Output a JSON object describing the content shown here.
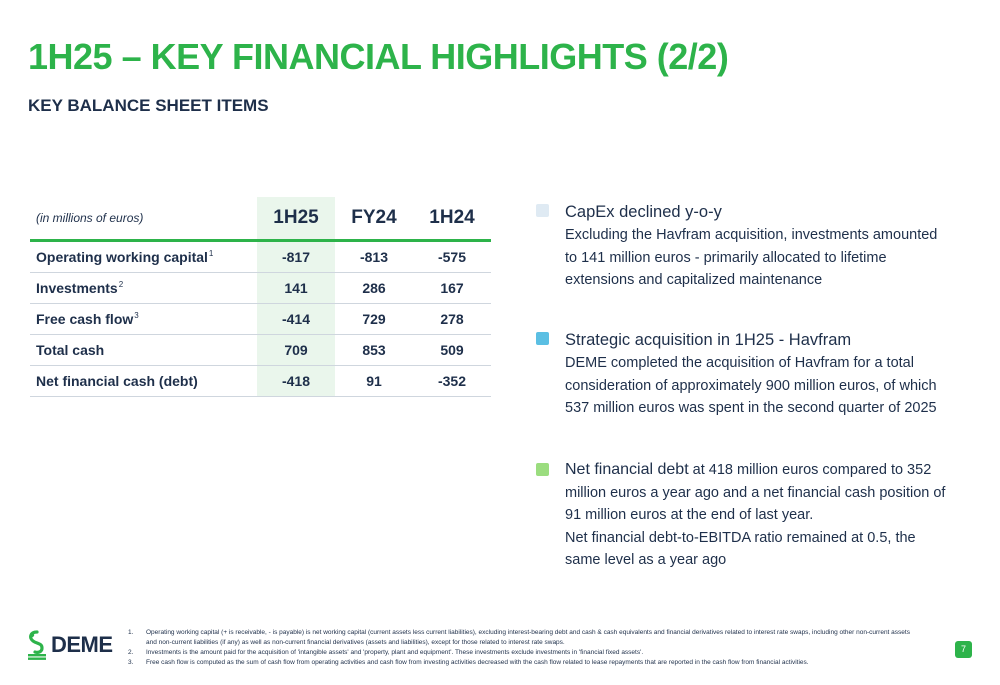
{
  "header": {
    "title": "1H25 – KEY FINANCIAL HIGHLIGHTS (2/2)",
    "subtitle": "KEY BALANCE SHEET ITEMS"
  },
  "table": {
    "unit_label": "(in millions of euros)",
    "columns": [
      "1H25",
      "FY24",
      "1H24"
    ],
    "rows": [
      {
        "label": "Operating working capital",
        "note": "1",
        "values": [
          "-817",
          "-813",
          "-575"
        ]
      },
      {
        "label": "Investments",
        "note": "2",
        "values": [
          "141",
          "286",
          "167"
        ]
      },
      {
        "label": "Free cash flow",
        "note": "3",
        "values": [
          "-414",
          "729",
          "278"
        ]
      },
      {
        "label": "Total cash",
        "note": "",
        "values": [
          "709",
          "853",
          "509"
        ]
      },
      {
        "label": "Net financial cash (debt)",
        "note": "",
        "values": [
          "-418",
          "91",
          "-352"
        ]
      }
    ]
  },
  "highlights": [
    {
      "color": "#dfeaf3",
      "heading": "CapEx declined y-o-y",
      "body": "Excluding the Havfram acquisition, investments amounted to 141 million euros - primarily allocated to lifetime extensions and capitalized maintenance"
    },
    {
      "color": "#5bbfe3",
      "heading": "Strategic acquisition in 1H25 - Havfram",
      "body": "DEME completed the acquisition of Havfram for a total consideration of approximately 900 million euros, of which 537 million euros was spent in the second quarter of 2025"
    },
    {
      "color": "#9bdd7f",
      "lead": "Net financial debt",
      "body1": " at 418 million euros compared to 352 million euros a year ago and a net financial cash position of 91 million euros at the end of last year.",
      "body2": "Net financial debt-to-EBITDA ratio remained at 0.5, the same level as a year ago"
    }
  ],
  "footer": {
    "logo_text": "DEME",
    "page_number": "7",
    "footnotes": [
      {
        "num": "1.",
        "text": "Operating working capital (+ is receivable, - is payable) is net working capital (current assets less current liabilities), excluding interest-bearing debt and cash & cash equivalents and financial derivatives related to interest rate swaps, including other non-current assets and non-current liabilities (if any) as well as non-current financial derivatives (assets and liabilities), except for those related to interest rate swaps."
      },
      {
        "num": "2.",
        "text": "Investments is the amount paid for the acquisition of 'intangible assets' and 'property, plant and equipment'. These investments exclude investments in 'financial fixed assets'."
      },
      {
        "num": "3.",
        "text": "Free cash flow is computed as the sum of cash flow from operating activities and cash flow from investing activities decreased with the cash flow related to lease repayments that are reported in the cash flow from financial activities."
      }
    ]
  },
  "colors": {
    "brand_green": "#2db34a",
    "navy": "#1e2f4a",
    "highlight_column": "#eaf6ec"
  }
}
